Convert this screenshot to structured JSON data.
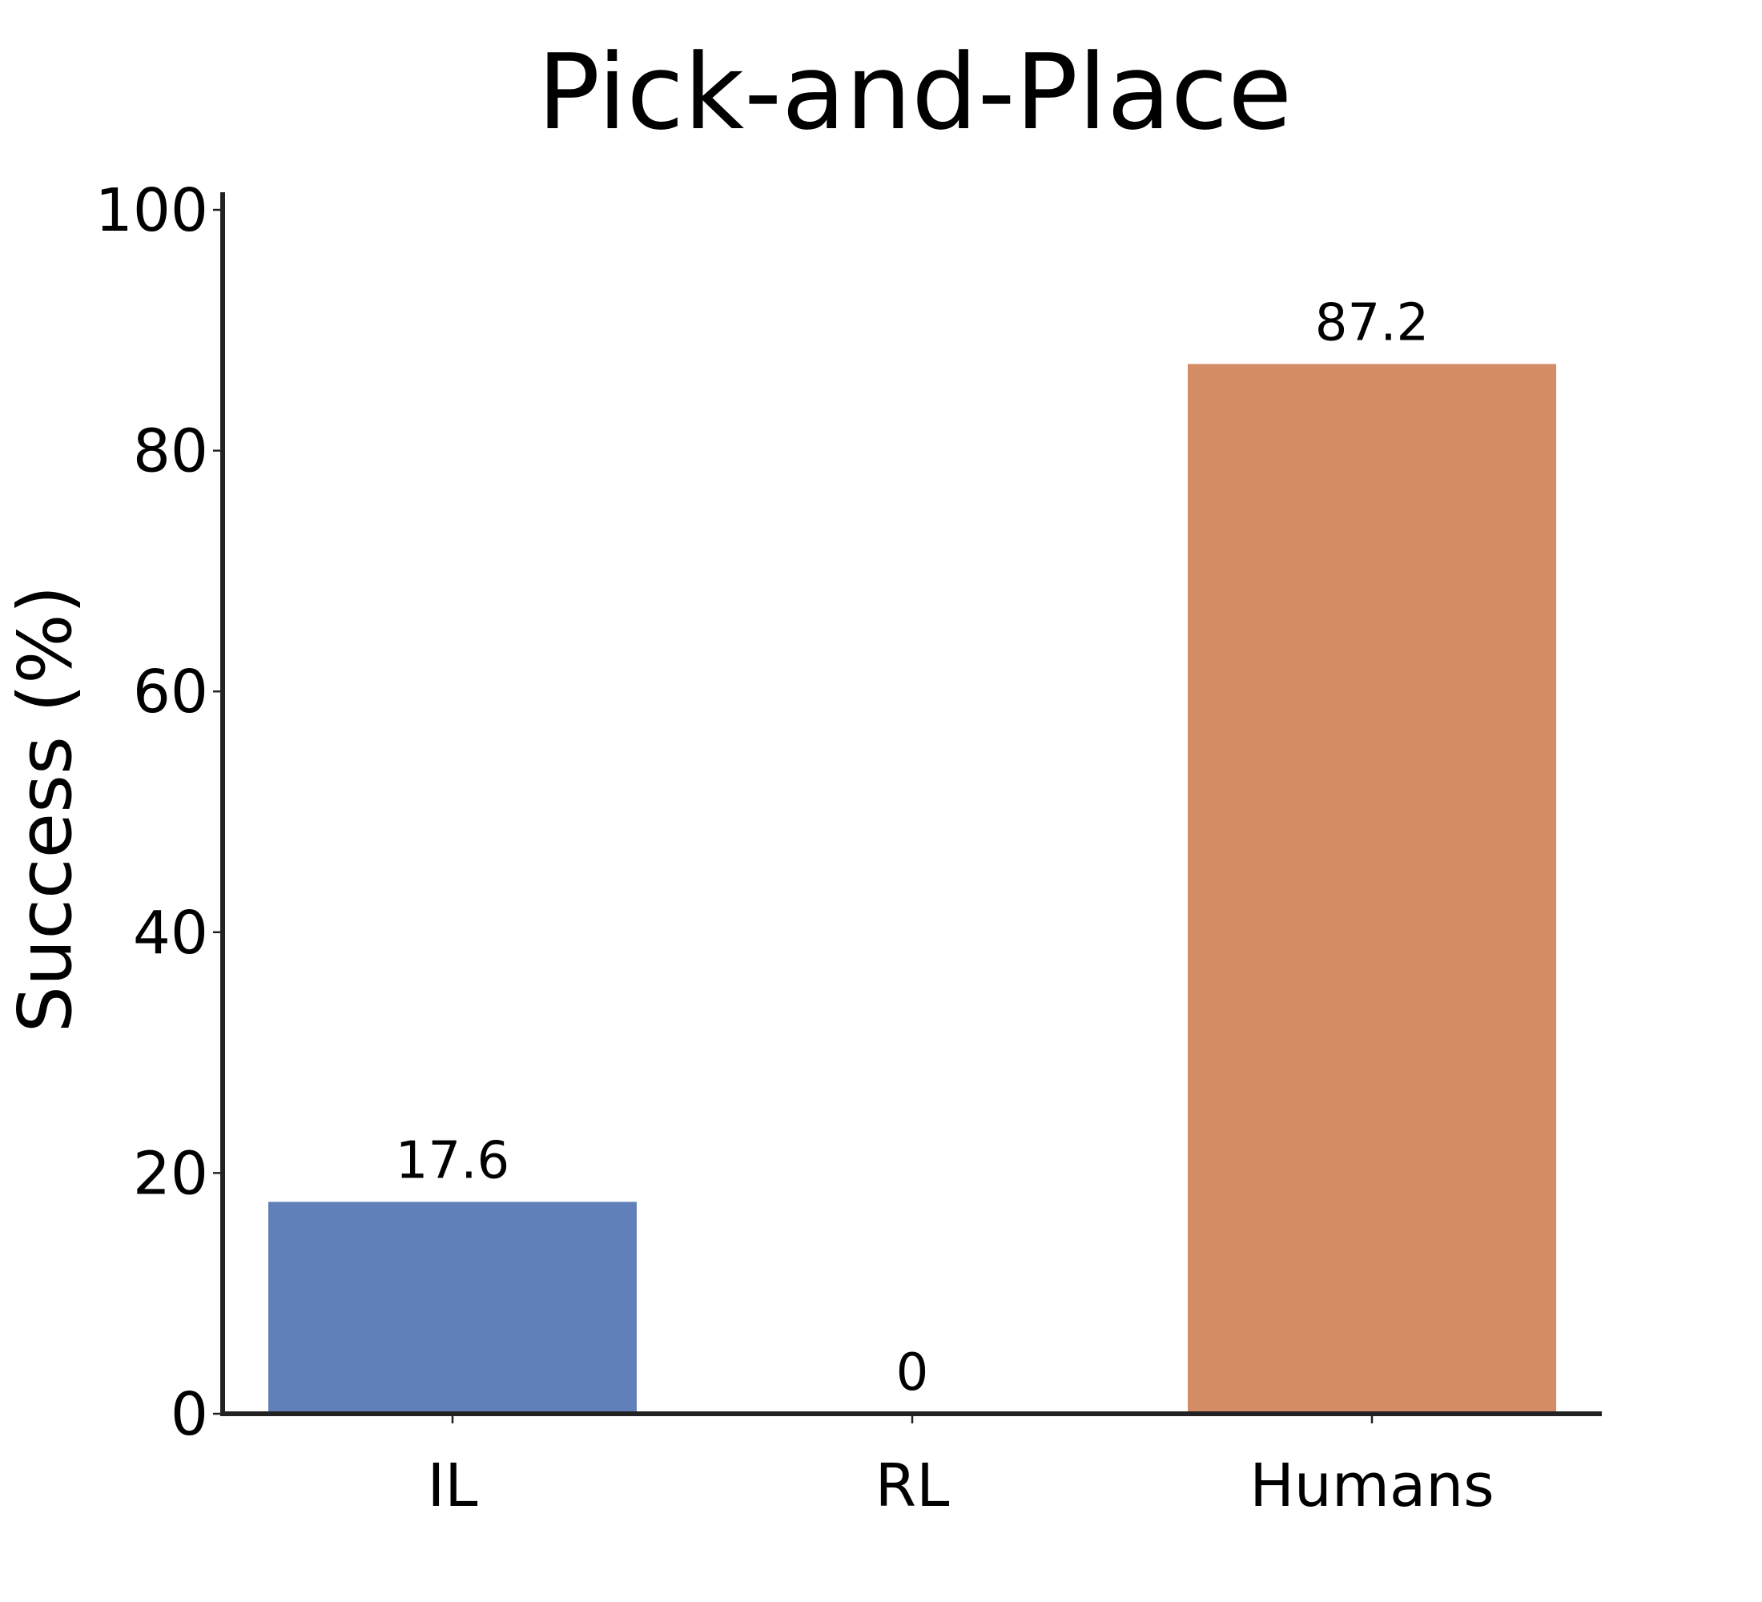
{
  "chart_data": {
    "type": "bar",
    "title": "Pick-and-Place",
    "xlabel": "",
    "ylabel": "Success (%)",
    "categories": [
      "IL",
      "RL",
      "Humans"
    ],
    "values": [
      17.6,
      0,
      87.2
    ],
    "data_labels": [
      "17.6",
      "0",
      "87.2"
    ],
    "colors": [
      "#6180b9",
      "#6180b9",
      "#d38c66"
    ],
    "ylim": [
      0,
      100
    ],
    "yticks": [
      0,
      20,
      40,
      60,
      80,
      100
    ],
    "grid": false,
    "legend": "none"
  }
}
